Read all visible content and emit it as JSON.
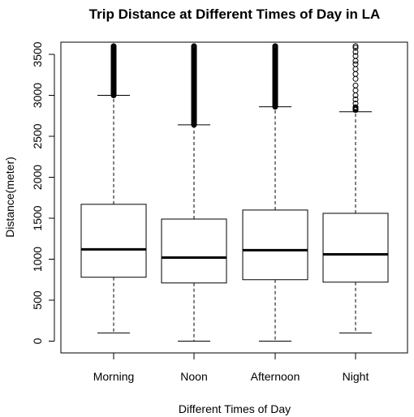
{
  "chart_data": {
    "type": "boxplot",
    "title": "Trip Distance at Different Times of Day in LA",
    "xlabel": "Different Times of Day",
    "ylabel": "Distance(meter)",
    "categories": [
      "Morning",
      "Noon",
      "Afternoon",
      "Night"
    ],
    "ylim": [
      -120,
      3620
    ],
    "yticks": [
      0,
      500,
      1000,
      1500,
      2000,
      2500,
      3000,
      3500
    ],
    "boxes": [
      {
        "category": "Morning",
        "whisker_low": 100,
        "q1": 780,
        "median": 1120,
        "q3": 1670,
        "whisker_high": 3000,
        "outliers_dense": [
          3000,
          3600
        ],
        "outliers_sparse": [
          3040,
          3110,
          3200,
          3300,
          3380,
          3430,
          3480,
          3520,
          3560,
          3600
        ]
      },
      {
        "category": "Noon",
        "whisker_low": 0,
        "q1": 710,
        "median": 1020,
        "q3": 1490,
        "whisker_high": 2640,
        "outliers_dense": [
          2640,
          3600
        ],
        "outliers_sparse": [
          2680,
          2800,
          2950,
          3100,
          3300,
          3450,
          3580,
          3600
        ]
      },
      {
        "category": "Afternoon",
        "whisker_low": 0,
        "q1": 750,
        "median": 1110,
        "q3": 1600,
        "whisker_high": 2860,
        "outliers_dense": [
          2860,
          3600
        ],
        "outliers_sparse": [
          2880,
          2950,
          3050,
          3150,
          3300,
          3420,
          3540,
          3600
        ]
      },
      {
        "category": "Night",
        "whisker_low": 100,
        "q1": 720,
        "median": 1060,
        "q3": 1560,
        "whisker_high": 2800,
        "outliers_dense": [
          2820,
          2860
        ],
        "outliers_sparse": [
          2900,
          2950,
          3000,
          3060,
          3120,
          3200,
          3260,
          3320,
          3380,
          3420,
          3480,
          3530,
          3580,
          3600
        ]
      }
    ],
    "grid": false,
    "legend": "none"
  }
}
